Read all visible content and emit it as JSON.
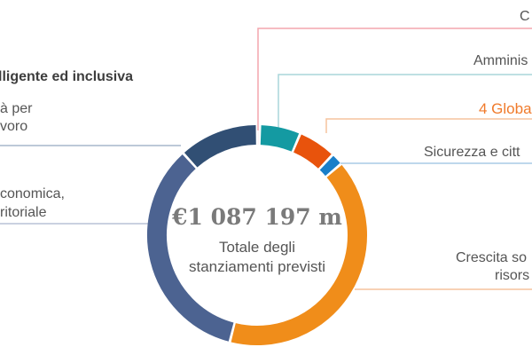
{
  "chart_data": {
    "type": "pie",
    "style": "donut",
    "total_value": "€1 087 197 m",
    "total_label": [
      "Totale degli",
      "stanziamenti previsti"
    ],
    "heading": "lligente ed inclusiva",
    "slices": [
      {
        "label": "C",
        "value": 0.4,
        "color": "#f4a6ae"
      },
      {
        "label": "Amminis",
        "value": 6.0,
        "color": "#149aa2"
      },
      {
        "label": "4 Globa",
        "value": 5.6,
        "color": "#e8530c"
      },
      {
        "label": "Sicurezza e citt",
        "value": 1.8,
        "color": "#1a7fc9"
      },
      {
        "label": "Crescita so|risors",
        "value": 40.2,
        "color": "#f08d1a"
      },
      {
        "label": "conomica,|ritoriale",
        "value": 34.3,
        "color": "#4c6391"
      },
      {
        "label": "à per|voro",
        "value": 11.7,
        "color": "#314f74"
      }
    ],
    "label_lines": {
      "c": "C",
      "amminis": "Amminis",
      "globa": "4 Globa",
      "sicurezza": "Sicurezza e citt",
      "crescita_1": "Crescita so",
      "crescita_2": "risors",
      "economica_1": "conomica,",
      "economica_2": "ritoriale",
      "lavoro_1": "à per",
      "lavoro_2": "voro"
    }
  }
}
